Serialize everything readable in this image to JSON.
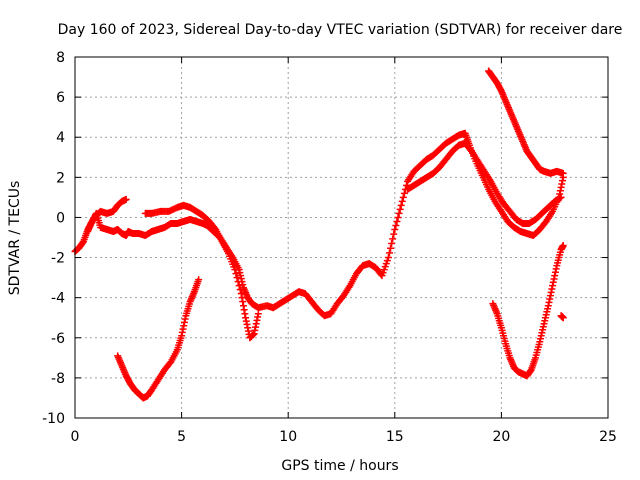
{
  "chart_data": {
    "type": "scatter",
    "title": "Day 160 of 2023, Sidereal Day-to-day VTEC variation (SDTVAR) for receiver dare",
    "xlabel": "GPS time / hours",
    "ylabel": "SDTVAR / TECUs",
    "xlim": [
      0,
      25
    ],
    "ylim": [
      -10,
      8
    ],
    "x_ticks": [
      0,
      5,
      10,
      15,
      20,
      25
    ],
    "y_ticks": [
      -10,
      -8,
      -6,
      -4,
      -2,
      0,
      2,
      4,
      6,
      8
    ],
    "grid": true,
    "marker": "+",
    "color": "#ff0000",
    "series": [
      {
        "x": [
          0.0,
          0.2,
          0.4,
          0.6,
          0.8,
          1.0,
          1.2,
          1.5,
          1.8,
          2.0,
          2.2,
          2.4,
          2.5,
          2.7,
          3.0,
          3.3,
          3.6,
          3.9,
          4.2,
          4.5,
          4.8,
          5.1,
          5.4,
          5.7,
          6.0,
          6.2,
          6.5,
          6.8,
          7.1,
          7.4,
          7.7,
          7.9,
          8.1,
          8.3,
          8.6,
          9.0,
          9.3,
          9.6,
          9.9,
          10.2,
          10.5,
          10.8,
          11.1,
          11.4,
          11.7,
          12.0,
          12.3,
          12.6,
          12.9,
          13.2,
          13.5,
          13.8,
          14.1,
          14.4,
          14.7,
          15.0,
          15.3,
          15.6,
          15.9,
          16.2,
          16.5,
          16.8,
          17.1,
          17.4,
          17.7,
          18.0,
          18.3,
          18.5,
          18.8,
          19.1,
          19.4,
          19.7,
          20.0,
          20.3,
          20.6,
          20.9,
          21.2,
          21.5,
          21.8,
          22.1,
          22.4,
          22.7,
          22.9
        ],
        "y": [
          -1.7,
          -1.5,
          -1.2,
          -0.6,
          -0.2,
          0.2,
          -0.5,
          -0.6,
          -0.7,
          -0.6,
          -0.8,
          -0.9,
          -0.7,
          -0.8,
          -0.8,
          -0.9,
          -0.7,
          -0.6,
          -0.5,
          -0.3,
          -0.3,
          -0.2,
          -0.1,
          -0.2,
          -0.3,
          -0.4,
          -0.7,
          -1.0,
          -1.5,
          -2.0,
          -2.6,
          -3.5,
          -4.0,
          -4.3,
          -4.5,
          -4.4,
          -4.5,
          -4.3,
          -4.1,
          -3.9,
          -3.7,
          -3.8,
          -4.2,
          -4.6,
          -4.9,
          -4.8,
          -4.3,
          -3.9,
          -3.4,
          -2.8,
          -2.4,
          -2.3,
          -2.5,
          -2.9,
          -2.0,
          -0.6,
          0.6,
          1.8,
          2.3,
          2.6,
          2.9,
          3.1,
          3.4,
          3.7,
          3.9,
          4.1,
          4.2,
          3.6,
          2.8,
          2.1,
          1.4,
          0.8,
          0.3,
          -0.2,
          -0.5,
          -0.7,
          -0.8,
          -0.9,
          -0.6,
          -0.2,
          0.3,
          1.0,
          2.0
        ]
      },
      {
        "x": [
          0.6,
          0.8,
          1.0,
          1.2,
          1.5,
          1.8,
          2.0,
          2.2,
          2.4
        ],
        "y": [
          -0.7,
          -0.2,
          0.1,
          0.3,
          0.2,
          0.3,
          0.6,
          0.8,
          0.9
        ]
      },
      {
        "x": [
          3.3,
          3.6,
          4.0,
          4.4,
          4.8,
          5.1,
          5.4,
          5.7,
          6.0,
          6.3,
          6.6,
          6.9,
          7.2,
          7.5,
          7.8,
          8.0,
          8.2,
          8.4,
          8.6
        ],
        "y": [
          0.2,
          0.2,
          0.3,
          0.3,
          0.5,
          0.6,
          0.5,
          0.3,
          0.1,
          -0.2,
          -0.6,
          -1.2,
          -1.8,
          -2.6,
          -3.8,
          -5.0,
          -6.0,
          -5.8,
          -4.8
        ]
      },
      {
        "x": [
          2.0,
          2.2,
          2.4,
          2.6,
          2.8,
          3.0,
          3.2,
          3.4,
          3.6,
          3.9,
          4.2,
          4.5,
          4.8,
          5.0,
          5.2,
          5.4,
          5.6,
          5.8
        ],
        "y": [
          -6.9,
          -7.4,
          -7.9,
          -8.3,
          -8.6,
          -8.8,
          -9.0,
          -8.9,
          -8.6,
          -8.1,
          -7.6,
          -7.2,
          -6.6,
          -5.9,
          -4.9,
          -4.2,
          -3.7,
          -3.1
        ]
      },
      {
        "x": [
          15.6,
          15.9,
          16.2,
          16.5,
          16.8,
          17.1,
          17.4,
          17.7,
          18.0,
          18.3,
          18.6,
          18.9,
          19.2,
          19.5,
          19.8,
          20.1,
          20.4,
          20.7,
          21.0,
          21.3,
          21.6,
          21.9,
          22.2,
          22.5,
          22.8
        ],
        "y": [
          1.4,
          1.6,
          1.8,
          2.0,
          2.2,
          2.5,
          2.9,
          3.3,
          3.6,
          3.7,
          3.3,
          2.8,
          2.3,
          1.8,
          1.2,
          0.7,
          0.3,
          -0.1,
          -0.3,
          -0.3,
          -0.1,
          0.2,
          0.5,
          0.8,
          1.0
        ]
      },
      {
        "x": [
          19.4,
          19.6,
          19.8,
          20.0,
          20.2,
          20.4,
          20.6,
          20.8,
          21.0,
          21.2,
          21.4,
          21.6,
          21.8,
          22.0,
          22.3,
          22.6,
          22.9
        ],
        "y": [
          7.3,
          7.0,
          6.7,
          6.3,
          5.8,
          5.3,
          4.8,
          4.3,
          3.8,
          3.3,
          3.0,
          2.7,
          2.4,
          2.3,
          2.2,
          2.3,
          2.2
        ]
      },
      {
        "x": [
          19.6,
          19.8,
          20.0,
          20.2,
          20.4,
          20.6,
          20.8,
          21.0,
          21.2,
          21.4,
          21.6,
          21.8,
          22.0,
          22.2,
          22.4,
          22.6,
          22.8,
          22.9
        ],
        "y": [
          -4.3,
          -4.8,
          -5.5,
          -6.3,
          -7.0,
          -7.5,
          -7.7,
          -7.8,
          -7.9,
          -7.6,
          -7.0,
          -6.2,
          -5.3,
          -4.4,
          -3.4,
          -2.4,
          -1.6,
          -1.4
        ]
      },
      {
        "x": [
          22.8,
          22.9
        ],
        "y": [
          -4.9,
          -5.0
        ]
      }
    ]
  }
}
